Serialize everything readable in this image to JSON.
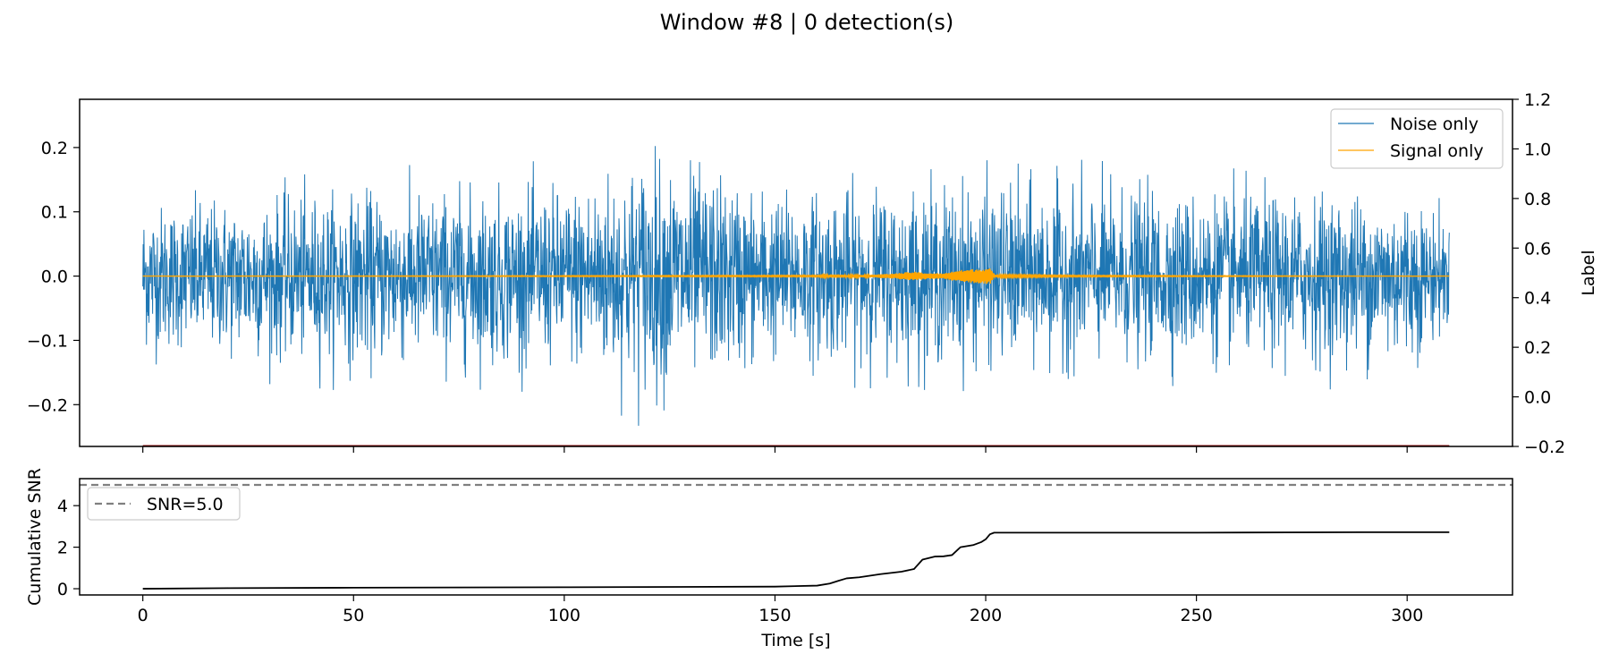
{
  "figure": {
    "title": "Window #8 | 0 detection(s)"
  },
  "colors": {
    "noise": "#1f77b4",
    "signal": "#ffa500",
    "label_line": "#8b0000",
    "cumulative": "#000000",
    "threshold": "#808080",
    "axes": "#000000"
  },
  "chart_data": [
    {
      "type": "line",
      "panel": "waveform",
      "title": "",
      "xlabel": "",
      "ylabel": "",
      "xlim": [
        -15,
        325
      ],
      "ylim": [
        -0.265,
        0.275
      ],
      "yticks": [
        -0.2,
        -0.1,
        0.0,
        0.1,
        0.2
      ],
      "ytick_labels": [
        "−0.2",
        "−0.1",
        "0.0",
        "0.1",
        "0.2"
      ],
      "grid": false,
      "legend_position": "top-right",
      "series": [
        {
          "name": "Noise only",
          "x_range": [
            0,
            310
          ],
          "envelope": {
            "x": [
              0,
              50,
              100,
              120,
              150,
              200,
              250,
              300,
              310
            ],
            "upper": [
              0.15,
              0.17,
              0.18,
              0.25,
              0.17,
              0.19,
              0.17,
              0.17,
              0.11
            ],
            "lower": [
              -0.15,
              -0.18,
              -0.18,
              -0.24,
              -0.17,
              -0.18,
              -0.17,
              -0.18,
              -0.11
            ]
          }
        },
        {
          "name": "Signal only",
          "x_range": [
            0,
            310
          ],
          "envelope": {
            "x": [
              0,
              160,
              164,
              168,
              172,
              178,
              183,
              186,
              190,
              193,
              197,
              199,
              201,
              202,
              220,
              310
            ],
            "amplitude": [
              0.0,
              0.001,
              0.003,
              0.002,
              0.002,
              0.004,
              0.007,
              0.005,
              0.004,
              0.009,
              0.011,
              0.012,
              0.013,
              0.002,
              0.001,
              0.0
            ]
          }
        }
      ],
      "secondary_axis": {
        "ylabel": "Label",
        "ylim": [
          -0.2,
          1.2
        ],
        "yticks": [
          -0.2,
          0.0,
          0.2,
          0.4,
          0.6,
          0.8,
          1.0,
          1.2
        ],
        "ytick_labels": [
          "−0.2",
          "0.0",
          "0.2",
          "0.4",
          "0.6",
          "0.8",
          "1.0",
          "1.2"
        ],
        "series": [
          {
            "name": "label",
            "x": [
              0,
              310
            ],
            "y": [
              -0.2,
              -0.2
            ]
          }
        ]
      }
    },
    {
      "type": "line",
      "panel": "cumulative-snr",
      "title": "",
      "xlabel": "Time [s]",
      "ylabel": "Cumulative SNR",
      "xlim": [
        -15,
        325
      ],
      "ylim": [
        -0.3,
        5.3
      ],
      "xticks": [
        0,
        50,
        100,
        150,
        200,
        250,
        300
      ],
      "xtick_labels": [
        "0",
        "50",
        "100",
        "150",
        "200",
        "250",
        "300"
      ],
      "yticks": [
        0,
        2,
        4
      ],
      "ytick_labels": [
        "0",
        "2",
        "4"
      ],
      "grid": false,
      "legend_position": "top-left",
      "threshold": {
        "name": "SNR=5.0",
        "y": 5.0
      },
      "series": [
        {
          "name": "cumulative",
          "x": [
            0,
            20,
            50,
            100,
            150,
            160,
            163,
            165,
            167,
            170,
            175,
            180,
            183,
            185,
            188,
            190,
            192,
            194,
            197,
            199,
            200,
            201,
            202,
            250,
            290,
            310
          ],
          "y": [
            0.0,
            0.03,
            0.05,
            0.07,
            0.1,
            0.15,
            0.25,
            0.38,
            0.5,
            0.55,
            0.7,
            0.82,
            0.95,
            1.4,
            1.55,
            1.56,
            1.62,
            2.0,
            2.1,
            2.25,
            2.38,
            2.62,
            2.7,
            2.7,
            2.72,
            2.72
          ]
        }
      ]
    }
  ]
}
